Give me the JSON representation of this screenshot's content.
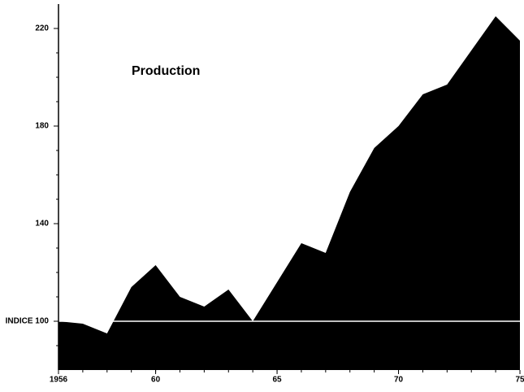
{
  "chart_data": {
    "type": "area",
    "title": "Production",
    "x": [
      1956,
      1957,
      1958,
      1959,
      1960,
      1961,
      1962,
      1963,
      1964,
      1965,
      1966,
      1967,
      1968,
      1969,
      1970,
      1971,
      1972,
      1973,
      1974,
      1975
    ],
    "values": [
      100,
      99,
      95,
      114,
      123,
      110,
      106,
      113,
      100,
      116,
      132,
      128,
      153,
      171,
      180,
      193,
      197,
      211,
      225,
      215
    ],
    "color": "#000000",
    "xlim": [
      1956,
      1975
    ],
    "xticks": [
      1956,
      {
        "value": 1960,
        "label": "60"
      },
      {
        "value": 1965,
        "label": "65"
      },
      {
        "value": 1970,
        "label": "70"
      },
      {
        "value": 1975,
        "label": "75"
      }
    ],
    "ylim": [
      80,
      230
    ],
    "yticks": [
      {
        "value": 100,
        "label": "INDICE 100"
      },
      140,
      180,
      220
    ],
    "yticks_minor": [
      90,
      110,
      120,
      130,
      150,
      160,
      170,
      190,
      200,
      210
    ],
    "reference_line": 100
  }
}
